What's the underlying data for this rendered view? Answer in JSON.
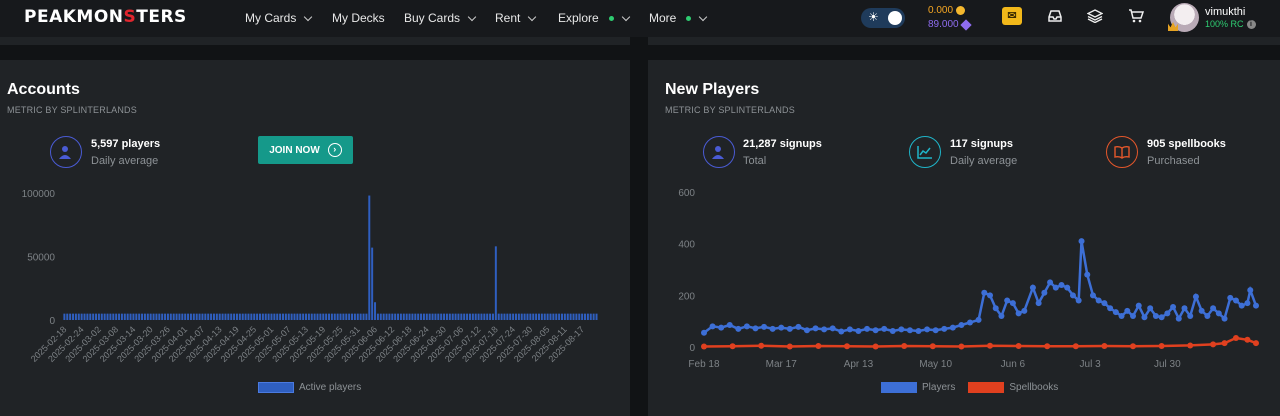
{
  "nav": {
    "logo_left": "PEAKMON",
    "logo_mid": "S",
    "logo_right": "TERS",
    "items": [
      {
        "label": "My Cards"
      },
      {
        "label": "My Decks"
      },
      {
        "label": "Buy Cards"
      },
      {
        "label": "Rent"
      },
      {
        "label": "Explore"
      },
      {
        "label": "More"
      }
    ],
    "balance_gold": "0.000",
    "balance_vouchers": "89.000",
    "username": "vimukthi",
    "rc": "100% RC",
    "colors": {
      "accent": "#15998a",
      "gold": "#f5a623",
      "purple": "#8e6cf0",
      "green": "#2ecc71"
    }
  },
  "accounts": {
    "title": "Accounts",
    "subtitle": "METRIC BY SPLINTERLANDS",
    "stat_value": "5,597 players",
    "stat_label": "Daily average",
    "join_label": "JOIN NOW"
  },
  "new_players": {
    "title": "New Players",
    "subtitle": "METRIC BY SPLINTERLANDS",
    "stats": [
      {
        "value": "21,287 signups",
        "label": "Total",
        "color": "#4a5bd4"
      },
      {
        "value": "117 signups",
        "label": "Daily average",
        "color": "#1fb5c9"
      },
      {
        "value": "905 spellbooks",
        "label": "Purchased",
        "color": "#e5572b"
      }
    ]
  },
  "chart_data": [
    {
      "type": "bar",
      "categories": [
        "2025-02-18",
        "2025-02-24",
        "2025-03-02",
        "2025-03-08",
        "2025-03-14",
        "2025-03-20",
        "2025-03-26",
        "2025-04-01",
        "2025-04-07",
        "2025-04-13",
        "2025-04-19",
        "2025-04-25",
        "2025-05-01",
        "2025-05-07",
        "2025-05-13",
        "2025-05-19",
        "2025-05-25",
        "2025-05-31",
        "2025-06-06",
        "2025-06-12",
        "2025-06-18",
        "2025-06-24",
        "2025-06-30",
        "2025-07-06",
        "2025-07-12",
        "2025-07-18",
        "2025-07-24",
        "2025-07-30",
        "2025-08-05",
        "2025-08-11",
        "2025-08-17"
      ],
      "series": [
        {
          "name": "Active players",
          "color": "#2f5fc0",
          "baseline": 5000,
          "spikes": [
            [
              106,
              98000
            ],
            [
              107,
              57000
            ],
            [
              108,
              14000
            ],
            [
              150,
              58000
            ]
          ]
        }
      ],
      "ylim": [
        0,
        100000
      ],
      "yticks": [
        "0",
        "50000",
        "100000"
      ],
      "grid": false,
      "legend": "bottom"
    },
    {
      "type": "line",
      "xticks": [
        "Feb 18",
        "Mar 17",
        "Apr 13",
        "May 10",
        "Jun 6",
        "Jul 3",
        "Jul 30"
      ],
      "yticks": [
        "0",
        "200",
        "400",
        "600"
      ],
      "ylim": [
        0,
        600
      ],
      "series": [
        {
          "name": "Players",
          "color": "#3d6fd6",
          "points": [
            [
              0,
              55
            ],
            [
              3,
              80
            ],
            [
              6,
              75
            ],
            [
              9,
              85
            ],
            [
              12,
              70
            ],
            [
              15,
              80
            ],
            [
              18,
              72
            ],
            [
              21,
              78
            ],
            [
              24,
              70
            ],
            [
              27,
              75
            ],
            [
              30,
              70
            ],
            [
              33,
              78
            ],
            [
              36,
              65
            ],
            [
              39,
              72
            ],
            [
              42,
              68
            ],
            [
              45,
              72
            ],
            [
              48,
              60
            ],
            [
              51,
              68
            ],
            [
              54,
              62
            ],
            [
              57,
              70
            ],
            [
              60,
              65
            ],
            [
              63,
              70
            ],
            [
              66,
              62
            ],
            [
              69,
              68
            ],
            [
              72,
              65
            ],
            [
              75,
              62
            ],
            [
              78,
              68
            ],
            [
              81,
              65
            ],
            [
              84,
              70
            ],
            [
              87,
              75
            ],
            [
              90,
              85
            ],
            [
              93,
              95
            ],
            [
              96,
              105
            ],
            [
              98,
              210
            ],
            [
              100,
              200
            ],
            [
              102,
              150
            ],
            [
              104,
              120
            ],
            [
              106,
              180
            ],
            [
              108,
              170
            ],
            [
              110,
              130
            ],
            [
              112,
              140
            ],
            [
              115,
              230
            ],
            [
              117,
              170
            ],
            [
              119,
              210
            ],
            [
              121,
              250
            ],
            [
              123,
              230
            ],
            [
              125,
              240
            ],
            [
              127,
              230
            ],
            [
              129,
              200
            ],
            [
              131,
              180
            ],
            [
              132,
              410
            ],
            [
              134,
              280
            ],
            [
              136,
              200
            ],
            [
              138,
              180
            ],
            [
              140,
              170
            ],
            [
              142,
              150
            ],
            [
              144,
              135
            ],
            [
              146,
              120
            ],
            [
              148,
              140
            ],
            [
              150,
              120
            ],
            [
              152,
              160
            ],
            [
              154,
              115
            ],
            [
              156,
              150
            ],
            [
              158,
              120
            ],
            [
              160,
              115
            ],
            [
              162,
              130
            ],
            [
              164,
              155
            ],
            [
              166,
              110
            ],
            [
              168,
              150
            ],
            [
              170,
              120
            ],
            [
              172,
              195
            ],
            [
              174,
              140
            ],
            [
              176,
              120
            ],
            [
              178,
              150
            ],
            [
              180,
              130
            ],
            [
              182,
              110
            ],
            [
              184,
              190
            ],
            [
              186,
              180
            ],
            [
              188,
              160
            ],
            [
              190,
              170
            ],
            [
              191,
              220
            ],
            [
              193,
              160
            ]
          ]
        },
        {
          "name": "Spellbooks",
          "color": "#e0401f",
          "points": [
            [
              0,
              2
            ],
            [
              10,
              3
            ],
            [
              20,
              5
            ],
            [
              30,
              2
            ],
            [
              40,
              4
            ],
            [
              50,
              3
            ],
            [
              60,
              2
            ],
            [
              70,
              4
            ],
            [
              80,
              3
            ],
            [
              90,
              2
            ],
            [
              100,
              5
            ],
            [
              110,
              4
            ],
            [
              120,
              3
            ],
            [
              130,
              3
            ],
            [
              140,
              4
            ],
            [
              150,
              3
            ],
            [
              160,
              4
            ],
            [
              170,
              6
            ],
            [
              178,
              10
            ],
            [
              182,
              15
            ],
            [
              186,
              35
            ],
            [
              190,
              28
            ],
            [
              193,
              15
            ]
          ]
        }
      ],
      "grid": false,
      "legend": "bottom"
    }
  ]
}
